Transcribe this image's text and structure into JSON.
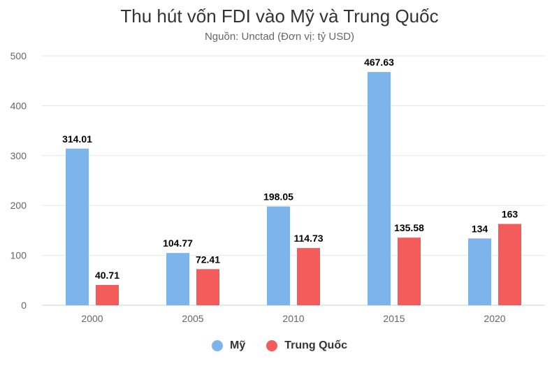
{
  "chart_data": {
    "type": "bar",
    "title": "Thu hút vốn FDI vào Mỹ và Trung Quốc",
    "subtitle": "Nguồn: Unctad (Đơn vị: tỷ USD)",
    "categories": [
      "2000",
      "2005",
      "2010",
      "2015",
      "2020"
    ],
    "series": [
      {
        "name": "Mỹ",
        "color": "#7cb5ec",
        "values": [
          314.01,
          104.77,
          198.05,
          467.63,
          134
        ],
        "labels": [
          "314.01",
          "104.77",
          "198.05",
          "467.63",
          "134"
        ]
      },
      {
        "name": "Trung Quốc",
        "color": "#f45b5b",
        "values": [
          40.71,
          72.41,
          114.73,
          135.58,
          163
        ],
        "labels": [
          "40.71",
          "72.41",
          "114.73",
          "135.58",
          "163"
        ]
      }
    ],
    "ylim": [
      0,
      500
    ],
    "yticks": [
      "0",
      "100",
      "200",
      "300",
      "400",
      "500"
    ],
    "grid": true,
    "legend": "bottom-center"
  }
}
